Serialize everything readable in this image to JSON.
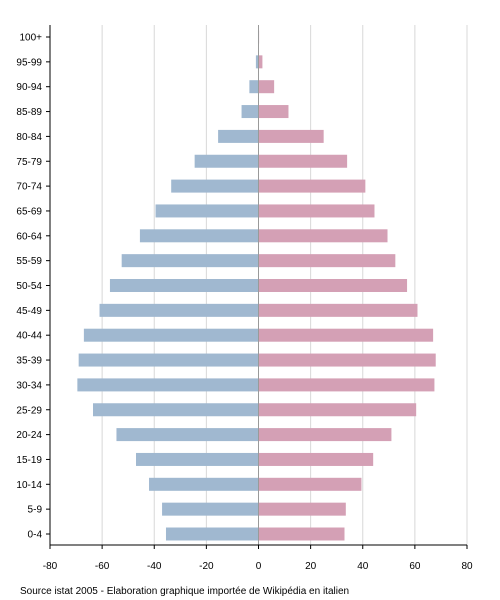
{
  "chart_data": {
    "type": "bar",
    "orientation": "horizontal",
    "categories": [
      "100+",
      "95-99",
      "90-94",
      "85-89",
      "80-84",
      "75-79",
      "70-74",
      "65-69",
      "60-64",
      "55-59",
      "50-54",
      "45-49",
      "40-44",
      "35-39",
      "30-34",
      "25-29",
      "20-24",
      "15-19",
      "10-14",
      "5-9",
      "0-4"
    ],
    "series": [
      {
        "color": "#a0b8d0",
        "values": [
          -0.2,
          -1,
          -3.5,
          -6.5,
          -15.5,
          -24.5,
          -33.5,
          -39.5,
          -45.5,
          -52.5,
          -57,
          -61,
          -67,
          -69,
          -69.5,
          -63.5,
          -54.5,
          -47,
          -42,
          -37,
          -35.5
        ]
      },
      {
        "color": "#d4a0b5",
        "values": [
          0.2,
          1.5,
          6,
          11.5,
          25,
          34,
          41,
          44.5,
          49.5,
          52.5,
          57,
          61,
          67,
          68,
          67.5,
          60.5,
          51,
          44,
          39.5,
          33.5,
          33
        ]
      }
    ],
    "xlim": [
      -80,
      80
    ],
    "xticks": [
      "-80",
      "-60",
      "-40",
      "-20",
      "0",
      "20",
      "40",
      "60",
      "80"
    ],
    "grid": true
  },
  "source": "Source istat 2005 - Elaboration graphique importée de Wikipédia en italien"
}
